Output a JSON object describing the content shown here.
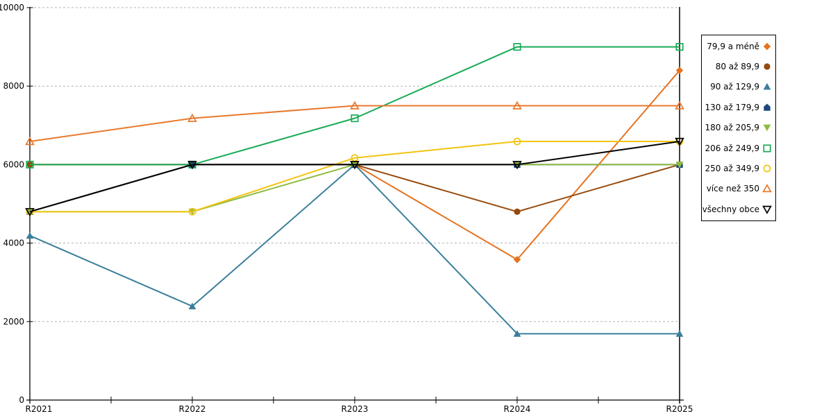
{
  "chart_data": {
    "type": "line",
    "title": "",
    "xlabel": "",
    "ylabel": "",
    "categories": [
      "R2021",
      "R2022",
      "R2023",
      "R2024",
      "R2025"
    ],
    "y_axis": {
      "min": 0,
      "max": 10000,
      "step": 2000,
      "tick_labels": [
        "0",
        "2000",
        "4000",
        "6000",
        "8000",
        "10000"
      ]
    },
    "x_axis": {
      "tick_labels": [
        "R2021",
        "R2022",
        "R2023",
        "R2024",
        "R2025"
      ],
      "minor_ticks_between_categories": true
    },
    "grid": {
      "horizontal": "dashed",
      "color": "#b3b3b3"
    },
    "legend": {
      "position": "right",
      "border_color": "#000000",
      "background": "#ffffff"
    },
    "series": [
      {
        "name": "79,9 a méně",
        "color": "#e5721e",
        "marker": "diamond",
        "fill": "solid",
        "values": [
          6000,
          6000,
          6000,
          3580,
          8400
        ]
      },
      {
        "name": "80 až 89,9",
        "color": "#964a0d",
        "marker": "circle",
        "fill": "solid",
        "values": [
          6000,
          6000,
          6000,
          4800,
          6000
        ]
      },
      {
        "name": "90 až 129,9",
        "color": "#3a7f9b",
        "marker": "triangle-up",
        "fill": "solid",
        "values": [
          4190,
          2390,
          6000,
          1690,
          1690
        ]
      },
      {
        "name": "130 až 179,9",
        "color": "#1f497d",
        "marker": "pentagon",
        "fill": "solid",
        "values": [
          4800,
          6000,
          6000,
          6000,
          6000
        ]
      },
      {
        "name": "180 až 205,9",
        "color": "#8fbb3f",
        "marker": "triangle-down",
        "fill": "solid",
        "values": [
          4800,
          4800,
          6000,
          6000,
          6000
        ]
      },
      {
        "name": "206 až 249,9",
        "color": "#17ab55",
        "marker": "square",
        "fill": "open",
        "values": [
          6000,
          6000,
          7180,
          9000,
          9000
        ]
      },
      {
        "name": "250 až 349,9",
        "color": "#f2c40f",
        "marker": "circle",
        "fill": "open",
        "values": [
          4800,
          4800,
          6170,
          6590,
          6590
        ]
      },
      {
        "name": "více než 350",
        "color": "#e8792c",
        "marker": "triangle-up",
        "fill": "open",
        "values": [
          6590,
          7180,
          7500,
          7500,
          7500
        ]
      },
      {
        "name": "všechny obce",
        "color": "#000000",
        "marker": "triangle-down",
        "fill": "open",
        "values": [
          4800,
          6000,
          6000,
          6000,
          6590
        ]
      }
    ]
  }
}
